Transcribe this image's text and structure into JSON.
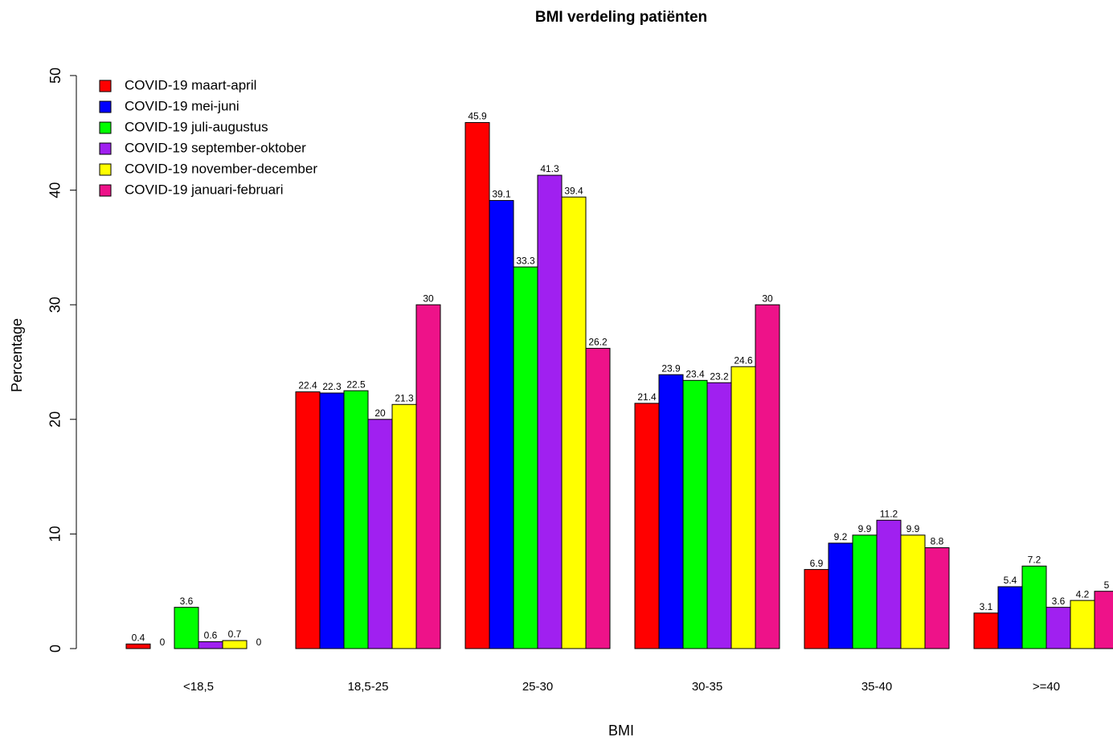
{
  "chart_data": {
    "type": "bar",
    "title": "BMI verdeling patiënten",
    "x_label": "BMI",
    "y_label": "Percentage",
    "categories": [
      "<18,5",
      "18,5-25",
      "25-30",
      "30-35",
      "35-40",
      ">=40"
    ],
    "series": [
      {
        "name": "COVID-19 maart-april",
        "color": "#ff0000",
        "values": [
          0.4,
          22.4,
          45.9,
          21.4,
          6.9,
          3.1
        ]
      },
      {
        "name": "COVID-19 mei-juni",
        "color": "#0000ff",
        "values": [
          0,
          22.3,
          39.1,
          23.9,
          9.2,
          5.4
        ]
      },
      {
        "name": "COVID-19 juli-augustus",
        "color": "#00ff00",
        "values": [
          3.6,
          22.5,
          33.3,
          23.4,
          9.9,
          7.2
        ]
      },
      {
        "name": "COVID-19 september-oktober",
        "color": "#a020f0",
        "values": [
          0.6,
          20,
          41.3,
          23.2,
          11.2,
          3.6
        ]
      },
      {
        "name": "COVID-19 november-december",
        "color": "#ffff00",
        "values": [
          0.7,
          21.3,
          39.4,
          24.6,
          9.9,
          4.2
        ]
      },
      {
        "name": "COVID-19 januari-februari",
        "color": "#ee1289",
        "values": [
          0,
          30,
          26.2,
          30,
          8.8,
          5
        ]
      }
    ],
    "ylim": [
      0,
      50
    ],
    "yticks": [
      0,
      10,
      20,
      30,
      40,
      50
    ],
    "legend": "top-left"
  }
}
